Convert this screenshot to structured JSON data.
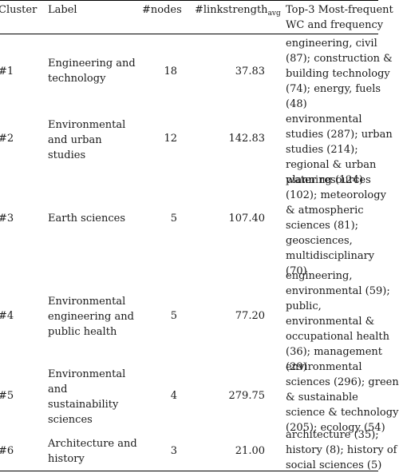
{
  "header": {
    "cluster": "Cluster",
    "label": "Label",
    "nodes": "#nodes",
    "link_main": "#linkstrength",
    "link_sub": "avg",
    "wc_line1": "Top-3 Most-frequent",
    "wc_line2": "WC and frequency"
  },
  "rows": [
    {
      "cluster": "#1",
      "label_lines": [
        "Engineering and",
        "technology"
      ],
      "nodes": "18",
      "linkstrength": "37.83",
      "wc_lines": [
        "engineering, civil",
        "(87); construction &",
        "building technology",
        "(74); energy, fuels",
        "(48)"
      ]
    },
    {
      "cluster": "#2",
      "label_lines": [
        "Environmental",
        "and urban",
        "studies"
      ],
      "nodes": "12",
      "linkstrength": "142.83",
      "wc_lines": [
        "environmental",
        "studies (287); urban",
        "studies (214);",
        "regional & urban",
        "planning (124)"
      ]
    },
    {
      "cluster": "#3",
      "label_lines": [
        "Earth sciences"
      ],
      "nodes": "5",
      "linkstrength": "107.40",
      "wc_lines": [
        "water resources",
        "(102); meteorology",
        "& atmospheric",
        "sciences (81);",
        "geosciences,",
        "multidisciplinary",
        "(70)"
      ]
    },
    {
      "cluster": "#4",
      "label_lines": [
        "Environmental",
        "engineering and",
        "public health"
      ],
      "nodes": "5",
      "linkstrength": "77.20",
      "wc_lines": [
        "engineering,",
        "environmental (59);",
        "public,",
        "environmental &",
        "occupational health",
        "(36); management",
        "(29)"
      ]
    },
    {
      "cluster": "#5",
      "label_lines": [
        "Environmental",
        "and",
        "sustainability",
        "sciences"
      ],
      "nodes": "4",
      "linkstrength": "279.75",
      "wc_lines": [
        "environmental",
        "sciences (296); green",
        "& sustainable",
        "science & technology",
        "(205); ecology (54)"
      ]
    },
    {
      "cluster": "#6",
      "label_lines": [
        "Architecture and",
        "history"
      ],
      "nodes": "3",
      "linkstrength": "21.00",
      "wc_lines": [
        "architecture (35);",
        "history (8); history of",
        "social sciences (5)"
      ]
    }
  ]
}
